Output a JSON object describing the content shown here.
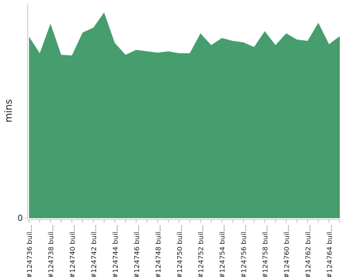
{
  "chart_data": {
    "type": "area",
    "y_label": "mins",
    "categories": [
      "#124736 buil...",
      null,
      "#124738 buil...",
      null,
      "#124740 buil...",
      null,
      "#124742 buil...",
      null,
      "#124744 buil...",
      null,
      "#124746 buil...",
      null,
      "#124748 buil...",
      null,
      "#124750 buil...",
      null,
      "#124752 buil...",
      null,
      "#124754 buil...",
      null,
      "#124756 buil...",
      null,
      "#124758 buil...",
      null,
      "#124760 buil...",
      null,
      "#124762 buil...",
      null,
      "#124764 buil...",
      null
    ],
    "values": [
      84.5,
      76.8,
      90.6,
      76.1,
      75.8,
      86.5,
      88.7,
      95.8,
      81.6,
      76.1,
      78.4,
      77.7,
      77.1,
      77.7,
      76.8,
      76.8,
      86.1,
      80.6,
      83.9,
      82.6,
      81.9,
      79.7,
      87.1,
      80.6,
      86.1,
      83.2,
      82.6,
      91.0,
      81.0,
      84.8
    ],
    "color": "#469d6d",
    "ylim": [
      0,
      100
    ],
    "yticks": [
      0
    ]
  }
}
